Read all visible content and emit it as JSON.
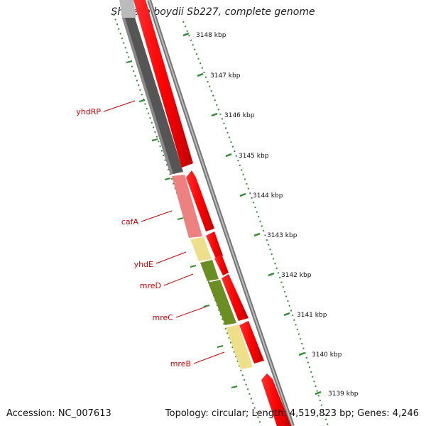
{
  "title": "Shigella boydii Sb227, complete genome",
  "footer": {
    "accession": "Accession: NC_007613",
    "stats": "Topology: circular; Length: 4,519,823 bp; Genes: 4,246"
  },
  "ticks": [
    "3148 kbp",
    "3147 kbp",
    "3146 kbp",
    "3145 kbp",
    "3144 kbp",
    "3143 kbp",
    "3142 kbp",
    "3141 kbp",
    "3140 kbp",
    "3139 kbp"
  ],
  "genes": [
    "yhdRP",
    "cafA",
    "yhdE",
    "mreD",
    "mreC",
    "mreB"
  ],
  "colors": {
    "forward_cds": "#ff0000",
    "reverse_pseudogene": "#555555",
    "reverse_pink": "#ee8080",
    "reverse_yellow": "#eee08a",
    "reverse_olive": "#6b8e23",
    "tick_green": "#2e8b2e",
    "label_red": "#d00000"
  }
}
